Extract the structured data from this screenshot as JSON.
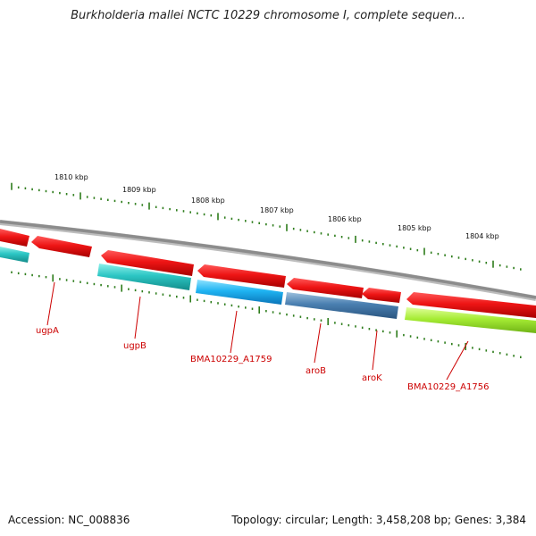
{
  "title": "Burkholderia mallei NCTC 10229 chromosome I, complete sequen...",
  "footer": {
    "accession": "Accession: NC_008836",
    "topology": "Topology: circular; Length: 3,458,208 bp; Genes: 3,384"
  },
  "colors": {
    "backbone": "#8c8c8c",
    "tick": "#2e7d1c",
    "label": "#cc0000",
    "red": "#e8101a",
    "cyan": "#2ec4c4",
    "sky": "#18b4f0",
    "steel": "#4a7fb0",
    "lime": "#9ee62a"
  },
  "scale_labels": [
    "1810 kbp",
    "1809 kbp",
    "1808 kbp",
    "1807 kbp",
    "1806 kbp",
    "1805 kbp",
    "1804 kbp"
  ],
  "gene_labels": [
    "ugpA",
    "ugpB",
    "BMA10229_A1759",
    "aroB",
    "aroK",
    "BMA10229_A1756"
  ]
}
